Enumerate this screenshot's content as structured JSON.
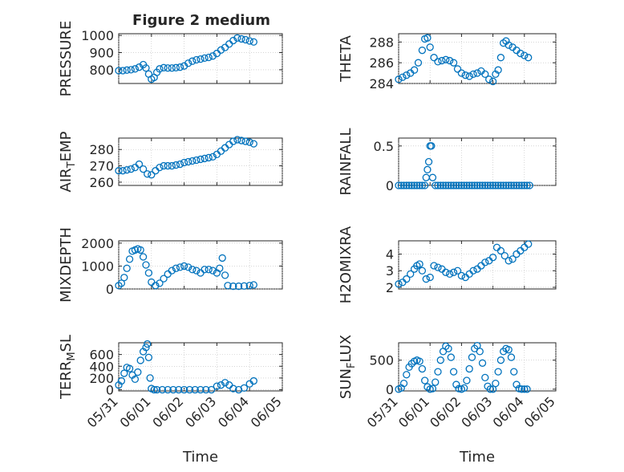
{
  "figure_title": "Figure 2 medium",
  "chart_data": [
    {
      "type": "scatter",
      "ylabel": "PRESSURE",
      "ylabel_sub": "",
      "xlim": [
        "05/31",
        "06/05"
      ],
      "ylim": [
        720,
        1010
      ],
      "yticks": [
        800,
        900,
        1000
      ],
      "xtick_labels": [],
      "xlabel": "",
      "grid": true,
      "marker": "circle",
      "color": "#0072bd",
      "x": [
        "05/31 00:00",
        "05/31 03:00",
        "05/31 06:00",
        "05/31 09:00",
        "05/31 12:00",
        "05/31 15:00",
        "05/31 18:00",
        "05/31 20:00",
        "05/31 22:00",
        "06/01 00:00",
        "06/01 02:00",
        "06/01 04:00",
        "06/01 06:00",
        "06/01 09:00",
        "06/01 12:00",
        "06/01 15:00",
        "06/01 18:00",
        "06/01 21:00",
        "06/02 00:00",
        "06/02 03:00",
        "06/02 06:00",
        "06/02 09:00",
        "06/02 12:00",
        "06/02 15:00",
        "06/02 18:00",
        "06/02 21:00",
        "06/03 00:00",
        "06/03 03:00",
        "06/03 06:00",
        "06/03 09:00",
        "06/03 12:00",
        "06/03 15:00",
        "06/03 18:00",
        "06/03 21:00",
        "06/04 00:00",
        "06/04 03:00"
      ],
      "y": [
        795,
        795,
        798,
        800,
        805,
        815,
        830,
        810,
        775,
        745,
        755,
        785,
        805,
        812,
        810,
        810,
        812,
        815,
        822,
        838,
        850,
        858,
        862,
        868,
        872,
        880,
        895,
        915,
        930,
        950,
        970,
        985,
        980,
        975,
        968,
        962
      ]
    },
    {
      "type": "scatter",
      "ylabel": "THETA",
      "ylabel_sub": "",
      "xlim": [
        "05/31",
        "06/05"
      ],
      "ylim": [
        284,
        288.8
      ],
      "yticks": [
        284,
        286,
        288
      ],
      "xtick_labels": [],
      "xlabel": "",
      "grid": true,
      "marker": "circle",
      "color": "#0072bd",
      "x": [
        "05/31 00:00",
        "05/31 03:00",
        "05/31 06:00",
        "05/31 09:00",
        "05/31 12:00",
        "05/31 15:00",
        "05/31 18:00",
        "05/31 20:00",
        "05/31 22:00",
        "06/01 00:00",
        "06/01 03:00",
        "06/01 06:00",
        "06/01 09:00",
        "06/01 12:00",
        "06/01 15:00",
        "06/01 18:00",
        "06/01 21:00",
        "06/02 00:00",
        "06/02 03:00",
        "06/02 06:00",
        "06/02 09:00",
        "06/02 12:00",
        "06/02 15:00",
        "06/02 18:00",
        "06/02 21:00",
        "06/03 00:00",
        "06/03 02:00",
        "06/03 04:00",
        "06/03 06:00",
        "06/03 08:00",
        "06/03 10:00",
        "06/03 12:00",
        "06/03 15:00",
        "06/03 18:00",
        "06/03 21:00",
        "06/04 00:00",
        "06/04 03:00"
      ],
      "y": [
        284.4,
        284.6,
        284.8,
        285.0,
        285.3,
        286.0,
        287.2,
        288.3,
        288.4,
        287.5,
        286.5,
        286.1,
        286.2,
        286.3,
        286.2,
        286.0,
        285.4,
        285.0,
        284.8,
        284.7,
        284.9,
        285.0,
        285.2,
        284.9,
        284.4,
        284.2,
        284.9,
        285.3,
        286.5,
        287.9,
        288.1,
        287.7,
        287.5,
        287.2,
        286.9,
        286.7,
        286.5
      ]
    },
    {
      "type": "scatter",
      "ylabel": "AIR",
      "ylabel_sub": "T",
      "ylabel_rest": "EMP",
      "xlim": [
        "05/31",
        "06/05"
      ],
      "ylim": [
        258,
        287
      ],
      "yticks": [
        260,
        270,
        280
      ],
      "xtick_labels": [],
      "xlabel": "",
      "grid": true,
      "marker": "circle",
      "color": "#0072bd",
      "x": [
        "05/31 00:00",
        "05/31 03:00",
        "05/31 06:00",
        "05/31 09:00",
        "05/31 12:00",
        "05/31 15:00",
        "05/31 18:00",
        "05/31 21:00",
        "06/01 00:00",
        "06/01 03:00",
        "06/01 06:00",
        "06/01 09:00",
        "06/01 12:00",
        "06/01 15:00",
        "06/01 18:00",
        "06/01 21:00",
        "06/02 00:00",
        "06/02 03:00",
        "06/02 06:00",
        "06/02 09:00",
        "06/02 12:00",
        "06/02 15:00",
        "06/02 18:00",
        "06/02 21:00",
        "06/03 00:00",
        "06/03 03:00",
        "06/03 06:00",
        "06/03 09:00",
        "06/03 12:00",
        "06/03 15:00",
        "06/03 18:00",
        "06/03 21:00",
        "06/04 00:00",
        "06/04 03:00"
      ],
      "y": [
        267,
        267,
        267.5,
        268,
        269,
        271,
        268,
        265,
        264.5,
        267,
        269,
        270,
        270,
        270,
        270.5,
        271,
        272,
        272.5,
        273,
        273.5,
        274,
        274.5,
        275,
        275.5,
        277,
        279,
        281,
        283,
        285,
        286,
        285.5,
        285,
        284.5,
        283.5
      ]
    },
    {
      "type": "scatter",
      "ylabel": "RAINFALL",
      "ylabel_sub": "",
      "xlim": [
        "05/31",
        "06/05"
      ],
      "ylim": [
        0,
        0.6
      ],
      "yticks": [
        0,
        0.5
      ],
      "ytick_labels": [
        "0",
        "0.5"
      ],
      "xtick_labels": [],
      "xlabel": "",
      "grid": true,
      "marker": "circle",
      "color": "#0072bd",
      "x": [
        "05/31 00:00",
        "05/31 02:00",
        "05/31 04:00",
        "05/31 06:00",
        "05/31 08:00",
        "05/31 10:00",
        "05/31 12:00",
        "05/31 14:00",
        "05/31 16:00",
        "05/31 18:00",
        "05/31 20:00",
        "05/31 21:00",
        "05/31 22:00",
        "05/31 23:00",
        "06/01 00:00",
        "06/01 01:00",
        "06/01 02:00",
        "06/01 04:00",
        "06/01 06:00",
        "06/01 08:00",
        "06/01 10:00",
        "06/01 12:00",
        "06/01 14:00",
        "06/01 16:00",
        "06/01 18:00",
        "06/01 20:00",
        "06/01 22:00",
        "06/02 00:00",
        "06/02 02:00",
        "06/02 04:00",
        "06/02 06:00",
        "06/02 08:00",
        "06/02 10:00",
        "06/02 12:00",
        "06/02 14:00",
        "06/02 16:00",
        "06/02 18:00",
        "06/02 20:00",
        "06/02 22:00",
        "06/03 00:00",
        "06/03 02:00",
        "06/03 04:00",
        "06/03 06:00",
        "06/03 08:00",
        "06/03 10:00",
        "06/03 12:00",
        "06/03 14:00",
        "06/03 16:00",
        "06/03 18:00",
        "06/03 20:00",
        "06/03 22:00",
        "06/04 00:00",
        "06/04 02:00",
        "06/04 04:00"
      ],
      "y": [
        0,
        0,
        0,
        0,
        0,
        0,
        0,
        0,
        0,
        0,
        0,
        0.1,
        0.2,
        0.3,
        0.5,
        0.5,
        0.1,
        0,
        0,
        0,
        0,
        0,
        0,
        0,
        0,
        0,
        0,
        0,
        0,
        0,
        0,
        0,
        0,
        0,
        0,
        0,
        0,
        0,
        0,
        0,
        0,
        0,
        0,
        0,
        0,
        0,
        0,
        0,
        0,
        0,
        0,
        0,
        0,
        0
      ]
    },
    {
      "type": "scatter",
      "ylabel": "MIXDEPTH",
      "ylabel_sub": "",
      "xlim": [
        "05/31",
        "06/05"
      ],
      "ylim": [
        0,
        2100
      ],
      "yticks": [
        0,
        1000,
        2000
      ],
      "xtick_labels": [],
      "xlabel": "",
      "grid": true,
      "marker": "circle",
      "color": "#0072bd",
      "x": [
        "05/31 00:00",
        "05/31 02:00",
        "05/31 04:00",
        "05/31 06:00",
        "05/31 08:00",
        "05/31 10:00",
        "05/31 12:00",
        "05/31 14:00",
        "05/31 16:00",
        "05/31 18:00",
        "05/31 20:00",
        "05/31 22:00",
        "06/01 00:00",
        "06/01 03:00",
        "06/01 06:00",
        "06/01 09:00",
        "06/01 12:00",
        "06/01 15:00",
        "06/01 18:00",
        "06/01 21:00",
        "06/02 00:00",
        "06/02 03:00",
        "06/02 06:00",
        "06/02 09:00",
        "06/02 12:00",
        "06/02 15:00",
        "06/02 18:00",
        "06/02 21:00",
        "06/03 00:00",
        "06/03 02:00",
        "06/03 04:00",
        "06/03 06:00",
        "06/03 08:00",
        "06/03 12:00",
        "06/03 16:00",
        "06/03 20:00",
        "06/04 00:00",
        "06/04 03:00"
      ],
      "y": [
        150,
        250,
        500,
        900,
        1300,
        1650,
        1700,
        1750,
        1700,
        1400,
        1050,
        700,
        300,
        150,
        250,
        450,
        650,
        800,
        900,
        950,
        1000,
        950,
        850,
        800,
        700,
        850,
        850,
        800,
        700,
        900,
        1350,
        600,
        150,
        120,
        120,
        130,
        150,
        180
      ]
    },
    {
      "type": "scatter",
      "ylabel": "H2OMIXRA",
      "ylabel_sub": "",
      "xlim": [
        "05/31",
        "06/05"
      ],
      "ylim": [
        1.9,
        4.8
      ],
      "yticks": [
        2,
        3,
        4
      ],
      "xtick_labels": [],
      "xlabel": "",
      "grid": true,
      "marker": "circle",
      "color": "#0072bd",
      "x": [
        "05/31 00:00",
        "05/31 03:00",
        "05/31 06:00",
        "05/31 09:00",
        "05/31 12:00",
        "05/31 14:00",
        "05/31 16:00",
        "05/31 18:00",
        "05/31 21:00",
        "06/01 00:00",
        "06/01 03:00",
        "06/01 06:00",
        "06/01 09:00",
        "06/01 12:00",
        "06/01 15:00",
        "06/01 18:00",
        "06/01 21:00",
        "06/02 00:00",
        "06/02 03:00",
        "06/02 06:00",
        "06/02 09:00",
        "06/02 12:00",
        "06/02 15:00",
        "06/02 18:00",
        "06/02 21:00",
        "06/03 00:00",
        "06/03 03:00",
        "06/03 06:00",
        "06/03 09:00",
        "06/03 12:00",
        "06/03 15:00",
        "06/03 18:00",
        "06/03 21:00",
        "06/04 00:00",
        "06/04 03:00"
      ],
      "y": [
        2.2,
        2.3,
        2.5,
        2.8,
        3.1,
        3.3,
        3.4,
        3.0,
        2.5,
        2.6,
        3.3,
        3.2,
        3.1,
        2.9,
        2.8,
        2.9,
        3.0,
        2.7,
        2.6,
        2.8,
        3.0,
        3.1,
        3.3,
        3.5,
        3.6,
        3.8,
        4.4,
        4.2,
        3.9,
        3.6,
        3.7,
        4.0,
        4.2,
        4.4,
        4.6
      ]
    },
    {
      "type": "scatter",
      "ylabel": "TERR",
      "ylabel_sub": "M",
      "ylabel_rest": "SL",
      "xlim": [
        "05/31",
        "06/05"
      ],
      "ylim": [
        -20,
        800
      ],
      "yticks": [
        0,
        200,
        400,
        600
      ],
      "xtick_labels": [
        "05/31",
        "06/01",
        "06/02",
        "06/03",
        "06/04",
        "06/05"
      ],
      "xlabel": "Time",
      "grid": true,
      "marker": "circle",
      "color": "#0072bd",
      "x": [
        "05/31 00:00",
        "05/31 02:00",
        "05/31 04:00",
        "05/31 06:00",
        "05/31 08:00",
        "05/31 10:00",
        "05/31 12:00",
        "05/31 14:00",
        "05/31 16:00",
        "05/31 18:00",
        "05/31 20:00",
        "05/31 21:00",
        "05/31 22:00",
        "05/31 23:00",
        "06/01 00:00",
        "06/01 02:00",
        "06/01 04:00",
        "06/01 08:00",
        "06/01 12:00",
        "06/01 16:00",
        "06/01 20:00",
        "06/02 00:00",
        "06/02 04:00",
        "06/02 08:00",
        "06/02 12:00",
        "06/02 16:00",
        "06/02 20:00",
        "06/03 00:00",
        "06/03 03:00",
        "06/03 06:00",
        "06/03 09:00",
        "06/03 12:00",
        "06/03 16:00",
        "06/03 20:00",
        "06/04 00:00",
        "06/04 03:00"
      ],
      "y": [
        80,
        150,
        280,
        380,
        360,
        250,
        180,
        300,
        500,
        650,
        720,
        780,
        550,
        200,
        20,
        0,
        0,
        0,
        0,
        0,
        0,
        0,
        0,
        0,
        0,
        0,
        0,
        60,
        80,
        120,
        80,
        20,
        0,
        30,
        100,
        150
      ]
    },
    {
      "type": "scatter",
      "ylabel": "SUN",
      "ylabel_sub": "F",
      "ylabel_rest": "LUX",
      "xlim": [
        "05/31",
        "06/05"
      ],
      "ylim": [
        -30,
        800
      ],
      "yticks": [
        0,
        500
      ],
      "xtick_labels": [
        "05/31",
        "06/01",
        "06/02",
        "06/03",
        "06/04",
        "06/05"
      ],
      "xlabel": "Time",
      "grid": true,
      "marker": "circle",
      "color": "#0072bd",
      "x": [
        "05/31 00:00",
        "05/31 02:00",
        "05/31 04:00",
        "05/31 06:00",
        "05/31 08:00",
        "05/31 10:00",
        "05/31 12:00",
        "05/31 14:00",
        "05/31 16:00",
        "05/31 18:00",
        "05/31 20:00",
        "05/31 22:00",
        "06/01 00:00",
        "06/01 02:00",
        "06/01 04:00",
        "06/01 06:00",
        "06/01 08:00",
        "06/01 10:00",
        "06/01 12:00",
        "06/01 14:00",
        "06/01 16:00",
        "06/01 18:00",
        "06/01 20:00",
        "06/01 22:00",
        "06/02 00:00",
        "06/02 02:00",
        "06/02 04:00",
        "06/02 06:00",
        "06/02 08:00",
        "06/02 10:00",
        "06/02 12:00",
        "06/02 14:00",
        "06/02 16:00",
        "06/02 18:00",
        "06/02 20:00",
        "06/02 22:00",
        "06/03 00:00",
        "06/03 02:00",
        "06/03 04:00",
        "06/03 06:00",
        "06/03 08:00",
        "06/03 10:00",
        "06/03 12:00",
        "06/03 14:00",
        "06/03 16:00",
        "06/03 18:00",
        "06/03 20:00",
        "06/03 22:00",
        "06/04 00:00",
        "06/04 02:00"
      ],
      "y": [
        0,
        20,
        100,
        250,
        380,
        440,
        480,
        500,
        480,
        350,
        150,
        40,
        0,
        10,
        120,
        300,
        500,
        650,
        740,
        700,
        550,
        300,
        80,
        10,
        0,
        20,
        150,
        350,
        550,
        700,
        750,
        650,
        450,
        200,
        50,
        0,
        0,
        100,
        300,
        500,
        650,
        700,
        680,
        550,
        300,
        80,
        10,
        0,
        0,
        0
      ]
    }
  ]
}
